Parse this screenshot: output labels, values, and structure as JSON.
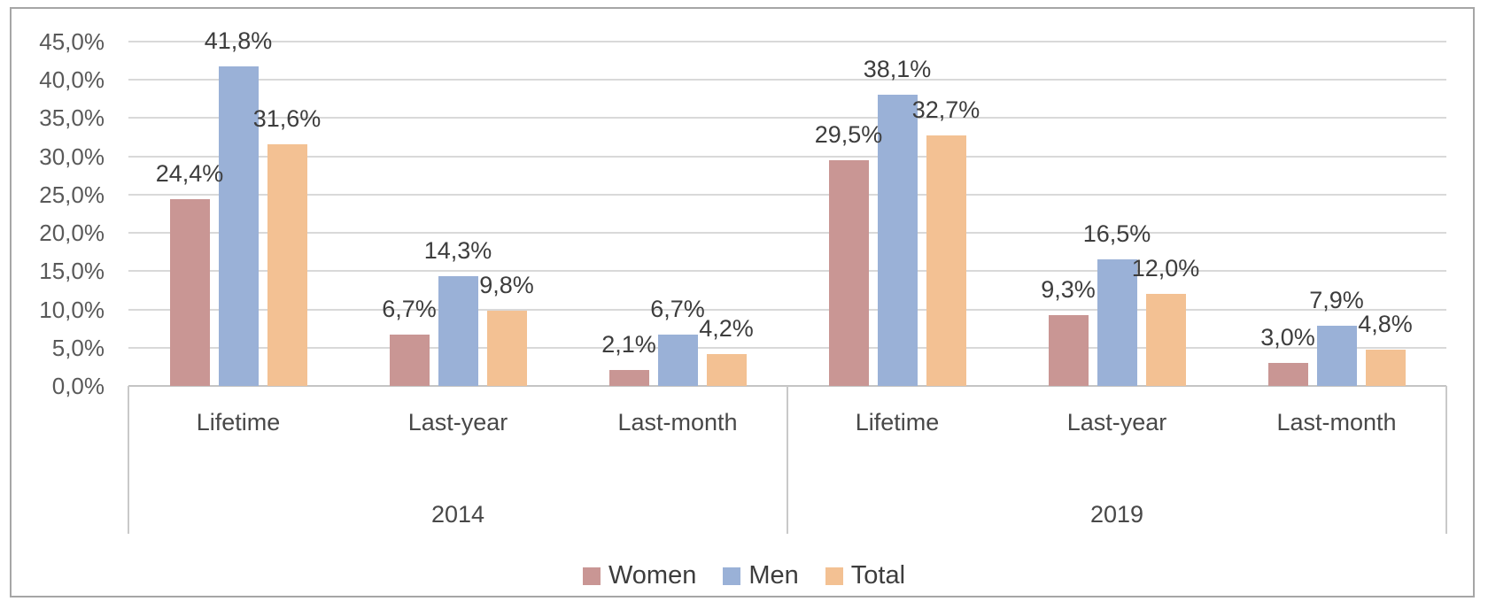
{
  "chart_data": {
    "type": "bar",
    "title": "",
    "xlabel": "",
    "ylabel": "",
    "grid": true,
    "legend_position": "bottom",
    "y_axis": {
      "min": 0,
      "max": 45,
      "step": 5,
      "ticks": [
        "45,0%",
        "40,0%",
        "35,0%",
        "30,0%",
        "25,0%",
        "20,0%",
        "15,0%",
        "10,0%",
        "5,0%",
        "0,0%"
      ]
    },
    "groups": [
      {
        "label": "2014",
        "categories": [
          "Lifetime",
          "Last-year",
          "Last-month"
        ]
      },
      {
        "label": "2019",
        "categories": [
          "Lifetime",
          "Last-year",
          "Last-month"
        ]
      }
    ],
    "slot_order": [
      "2014 Lifetime",
      "2014 Last-year",
      "2014 Last-month",
      "2019 Lifetime",
      "2019 Last-year",
      "2019 Last-month"
    ],
    "series": [
      {
        "name": "Women",
        "color": "#c99694",
        "values": [
          24.4,
          6.7,
          2.1,
          29.5,
          9.3,
          3.0
        ],
        "labels": [
          "24,4%",
          "6,7%",
          "2,1%",
          "29,5%",
          "9,3%",
          "3,0%"
        ]
      },
      {
        "name": "Men",
        "color": "#9ab1d7",
        "values": [
          41.8,
          14.3,
          6.7,
          38.1,
          16.5,
          7.9
        ],
        "labels": [
          "41,8%",
          "14,3%",
          "6,7%",
          "38,1%",
          "16,5%",
          "7,9%"
        ]
      },
      {
        "name": "Total",
        "color": "#f3c193",
        "values": [
          31.6,
          9.8,
          4.2,
          32.7,
          12.0,
          4.8
        ],
        "labels": [
          "31,6%",
          "9,8%",
          "4,2%",
          "32,7%",
          "12,0%",
          "4,8%"
        ]
      }
    ]
  },
  "colors": {
    "frame_border": "#a6a6a6",
    "gridline": "#d9d9d9",
    "axis_line": "#c4c4c4",
    "axis_text": "#595959",
    "category_text": "#484848",
    "data_label_text": "#3d3d3d",
    "background": "#ffffff"
  }
}
